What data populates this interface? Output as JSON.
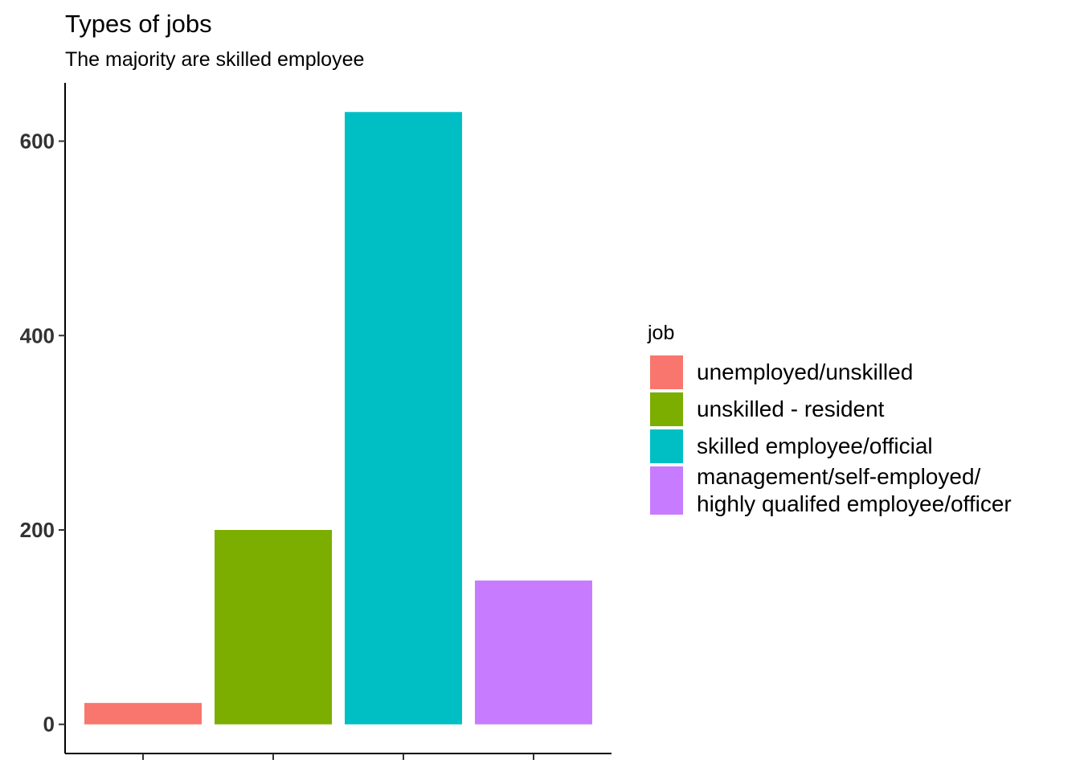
{
  "chart_data": {
    "type": "bar",
    "title": "Types of jobs",
    "subtitle": "The majority are skilled employee",
    "xlabel": "",
    "ylabel": "",
    "categories": [
      "unemployed/unskilled",
      "unskilled - resident",
      "skilled employee/official",
      "management/self-employed/ highly qualifed employee/officer"
    ],
    "values": [
      22,
      200,
      630,
      148
    ],
    "colors": [
      "#F8766D",
      "#7CAE00",
      "#00BFC4",
      "#C77CFF"
    ],
    "y_ticks": [
      0,
      200,
      400,
      600
    ],
    "ylim": [
      -30,
      660
    ],
    "grid": false,
    "legend": {
      "title": "job",
      "position": "right",
      "entries": [
        {
          "lines": [
            "unemployed/unskilled"
          ],
          "color": "#F8766D"
        },
        {
          "lines": [
            "unskilled - resident"
          ],
          "color": "#7CAE00"
        },
        {
          "lines": [
            "skilled employee/official"
          ],
          "color": "#00BFC4"
        },
        {
          "lines": [
            "management/self-employed/",
            "highly qualifed employee/officer"
          ],
          "color": "#C77CFF"
        }
      ]
    }
  }
}
